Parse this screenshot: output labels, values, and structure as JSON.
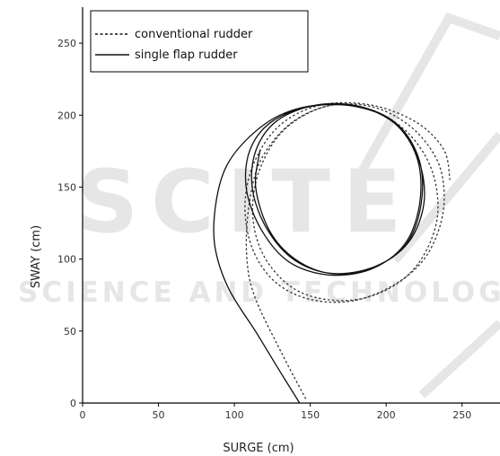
{
  "chart_data": {
    "type": "line",
    "title": "",
    "xlabel": "SURGE (cm)",
    "ylabel": "SWAY (cm)",
    "xlim": [
      0,
      275
    ],
    "ylim": [
      0,
      275
    ],
    "xticks": [
      0,
      50,
      100,
      150,
      200,
      250
    ],
    "yticks": [
      0,
      50,
      100,
      150,
      200,
      250
    ],
    "grid": false,
    "legend_position": "top-left",
    "series": [
      {
        "name": "conventional rudder",
        "line_style": "dashed",
        "color": "#333333",
        "points": [
          [
            147,
            3
          ],
          [
            131,
            35
          ],
          [
            113,
            75
          ],
          [
            108,
            105
          ],
          [
            110,
            140
          ],
          [
            118,
            170
          ],
          [
            138,
            195
          ],
          [
            165,
            207
          ],
          [
            192,
            203
          ],
          [
            215,
            187
          ],
          [
            230,
            162
          ],
          [
            234,
            132
          ],
          [
            226,
            105
          ],
          [
            210,
            85
          ],
          [
            186,
            73
          ],
          [
            160,
            72
          ],
          [
            137,
            81
          ],
          [
            119,
            103
          ],
          [
            112,
            132
          ],
          [
            117,
            163
          ],
          [
            133,
            190
          ],
          [
            160,
            206
          ],
          [
            190,
            206
          ],
          [
            215,
            193
          ],
          [
            232,
            172
          ],
          [
            238,
            150
          ],
          [
            236,
            125
          ],
          [
            225,
            100
          ],
          [
            205,
            82
          ],
          [
            178,
            71
          ],
          [
            150,
            72
          ],
          [
            127,
            84
          ],
          [
            112,
            107
          ],
          [
            107,
            137
          ],
          [
            113,
            167
          ],
          [
            130,
            193
          ],
          [
            157,
            207
          ],
          [
            190,
            207
          ],
          [
            220,
            195
          ],
          [
            238,
            176
          ],
          [
            242,
            155
          ]
        ]
      },
      {
        "name": "single flap rudder",
        "line_style": "solid",
        "color": "#111111",
        "points": [
          [
            143,
            0
          ],
          [
            130,
            22
          ],
          [
            115,
            48
          ],
          [
            96,
            80
          ],
          [
            87,
            110
          ],
          [
            88,
            140
          ],
          [
            95,
            165
          ],
          [
            110,
            185
          ],
          [
            130,
            200
          ],
          [
            155,
            207
          ],
          [
            185,
            205
          ],
          [
            208,
            192
          ],
          [
            221,
            168
          ],
          [
            222,
            138
          ],
          [
            212,
            110
          ],
          [
            190,
            93
          ],
          [
            162,
            89
          ],
          [
            136,
            98
          ],
          [
            118,
            120
          ],
          [
            108,
            148
          ],
          [
            110,
            175
          ],
          [
            124,
            195
          ],
          [
            150,
            206
          ],
          [
            180,
            206
          ],
          [
            205,
            195
          ],
          [
            221,
            170
          ],
          [
            225,
            140
          ],
          [
            215,
            112
          ],
          [
            193,
            95
          ],
          [
            165,
            90
          ],
          [
            140,
            99
          ],
          [
            122,
            120
          ],
          [
            112,
            148
          ],
          [
            114,
            175
          ],
          [
            128,
            196
          ],
          [
            154,
            207
          ],
          [
            183,
            206
          ],
          [
            208,
            193
          ],
          [
            222,
            168
          ],
          [
            223,
            138
          ],
          [
            213,
            110
          ],
          [
            191,
            94
          ],
          [
            164,
            90
          ],
          [
            140,
            100
          ],
          [
            123,
            120
          ],
          [
            114,
            150
          ],
          [
            117,
            176
          ]
        ]
      }
    ]
  },
  "watermark": {
    "main_text": "SCITE",
    "sub_text": "SCIENCE AND TECHNOLOGY"
  },
  "colors": {
    "axis": "#000000",
    "watermark": "#e6e6e6"
  }
}
